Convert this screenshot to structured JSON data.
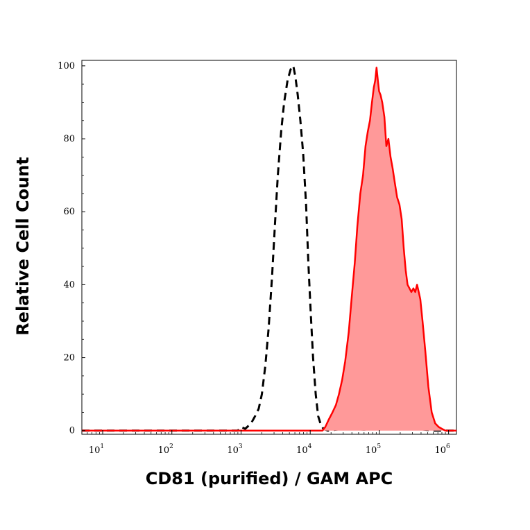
{
  "chart_data": {
    "type": "area",
    "xlabel": "CD81 (purified) / GAM APC",
    "ylabel": "Relative Cell Count",
    "x_scale": "log",
    "xlim": [
      5,
      1300000
    ],
    "ylim": [
      -1,
      101.5
    ],
    "x_ticks": [
      {
        "value": 10,
        "base": "10",
        "exp": "1"
      },
      {
        "value": 100,
        "base": "10",
        "exp": "2"
      },
      {
        "value": 1000,
        "base": "10",
        "exp": "3"
      },
      {
        "value": 10000,
        "base": "10",
        "exp": "4"
      },
      {
        "value": 100000,
        "base": "10",
        "exp": "5"
      },
      {
        "value": 1000000,
        "base": "10",
        "exp": "6"
      }
    ],
    "y_ticks": [
      0,
      20,
      40,
      60,
      80,
      100
    ],
    "grid": false,
    "series": [
      {
        "style": "dashed",
        "color": "#000000",
        "fill": "none",
        "points": [
          [
            5,
            0
          ],
          [
            900,
            0
          ],
          [
            1000,
            1
          ],
          [
            1150,
            0.5
          ],
          [
            1400,
            2
          ],
          [
            1600,
            4
          ],
          [
            1800,
            6
          ],
          [
            2000,
            10
          ],
          [
            2250,
            18
          ],
          [
            2500,
            28
          ],
          [
            2800,
            42
          ],
          [
            3100,
            57
          ],
          [
            3400,
            70
          ],
          [
            3800,
            82
          ],
          [
            4200,
            90
          ],
          [
            4700,
            96
          ],
          [
            5200,
            99
          ],
          [
            5700,
            100
          ],
          [
            6100,
            97
          ],
          [
            6600,
            92
          ],
          [
            7200,
            85
          ],
          [
            7900,
            76
          ],
          [
            8700,
            62
          ],
          [
            9400,
            46
          ],
          [
            10200,
            32
          ],
          [
            11000,
            20
          ],
          [
            12000,
            10
          ],
          [
            13000,
            4
          ],
          [
            14300,
            1.5
          ],
          [
            15500,
            0.5
          ],
          [
            18000,
            0
          ],
          [
            30000,
            0.5
          ],
          [
            60000,
            0.3
          ],
          [
            100000,
            0.5
          ],
          [
            200000,
            0.5
          ],
          [
            350000,
            0.5
          ],
          [
            600000,
            0
          ],
          [
            1300000,
            0
          ]
        ]
      },
      {
        "style": "solid",
        "color": "#ff0000",
        "fill": "#ff9999",
        "points": [
          [
            5,
            0
          ],
          [
            15000,
            0
          ],
          [
            16500,
            1
          ],
          [
            18500,
            3
          ],
          [
            21000,
            5
          ],
          [
            23500,
            7
          ],
          [
            26000,
            10
          ],
          [
            29000,
            14
          ],
          [
            32000,
            19
          ],
          [
            36000,
            27
          ],
          [
            40000,
            37
          ],
          [
            44000,
            46
          ],
          [
            48000,
            56
          ],
          [
            53000,
            65
          ],
          [
            58000,
            70
          ],
          [
            63000,
            78
          ],
          [
            68000,
            82
          ],
          [
            73000,
            85
          ],
          [
            78000,
            90
          ],
          [
            83000,
            94
          ],
          [
            87000,
            96
          ],
          [
            91000,
            99.5
          ],
          [
            95000,
            96
          ],
          [
            99000,
            93
          ],
          [
            104000,
            92
          ],
          [
            110000,
            90
          ],
          [
            118000,
            86
          ],
          [
            126000,
            78
          ],
          [
            135000,
            80
          ],
          [
            145000,
            75
          ],
          [
            155000,
            72
          ],
          [
            167000,
            68
          ],
          [
            180000,
            64
          ],
          [
            195000,
            62
          ],
          [
            210000,
            58
          ],
          [
            225000,
            50
          ],
          [
            240000,
            44
          ],
          [
            255000,
            40
          ],
          [
            272000,
            39
          ],
          [
            290000,
            38
          ],
          [
            310000,
            39
          ],
          [
            330000,
            38
          ],
          [
            350000,
            40
          ],
          [
            370000,
            38
          ],
          [
            390000,
            36
          ],
          [
            420000,
            30
          ],
          [
            460000,
            22
          ],
          [
            510000,
            12
          ],
          [
            570000,
            5
          ],
          [
            640000,
            2
          ],
          [
            720000,
            1
          ],
          [
            800000,
            0.5
          ],
          [
            900000,
            0
          ],
          [
            1300000,
            0
          ]
        ]
      }
    ]
  }
}
